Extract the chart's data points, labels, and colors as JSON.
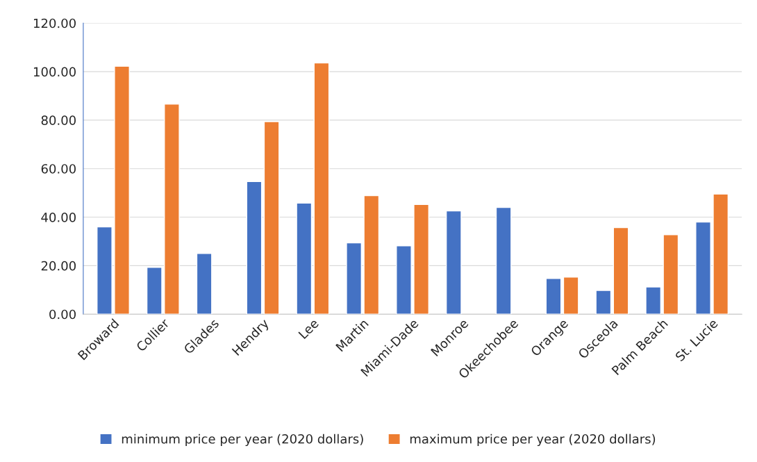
{
  "chart_data": {
    "type": "bar",
    "categories": [
      "Broward",
      "Collier",
      "Glades",
      "Hendry",
      "Lee",
      "Martin",
      "Miami-Dade",
      "Monroe",
      "Okeechobee",
      "Orange",
      "Osceola",
      "Palm Beach",
      "St. Lucie"
    ],
    "series": [
      {
        "name": "minimum price per year (2020 dollars)",
        "color": "#4472c4",
        "values": [
          36.0,
          19.3,
          25.0,
          54.7,
          45.8,
          29.4,
          28.2,
          42.6,
          44.0,
          14.7,
          9.8,
          11.2,
          38.0
        ]
      },
      {
        "name": "maximum price per year (2020 dollars)",
        "color": "#ed7d31",
        "values": [
          102.2,
          86.6,
          null,
          79.4,
          103.6,
          48.9,
          45.2,
          null,
          null,
          15.3,
          35.7,
          32.8,
          49.5
        ]
      }
    ],
    "ylim": [
      0,
      120
    ],
    "yticks": [
      {
        "value": 0,
        "label": "0.00"
      },
      {
        "value": 20,
        "label": "20.00"
      },
      {
        "value": 40,
        "label": "40.00"
      },
      {
        "value": 60,
        "label": "60.00"
      },
      {
        "value": 80,
        "label": "80.00"
      },
      {
        "value": 100,
        "label": "100.00"
      },
      {
        "value": 120,
        "label": "120.00"
      }
    ],
    "grid": "y",
    "legend": "bottom"
  }
}
